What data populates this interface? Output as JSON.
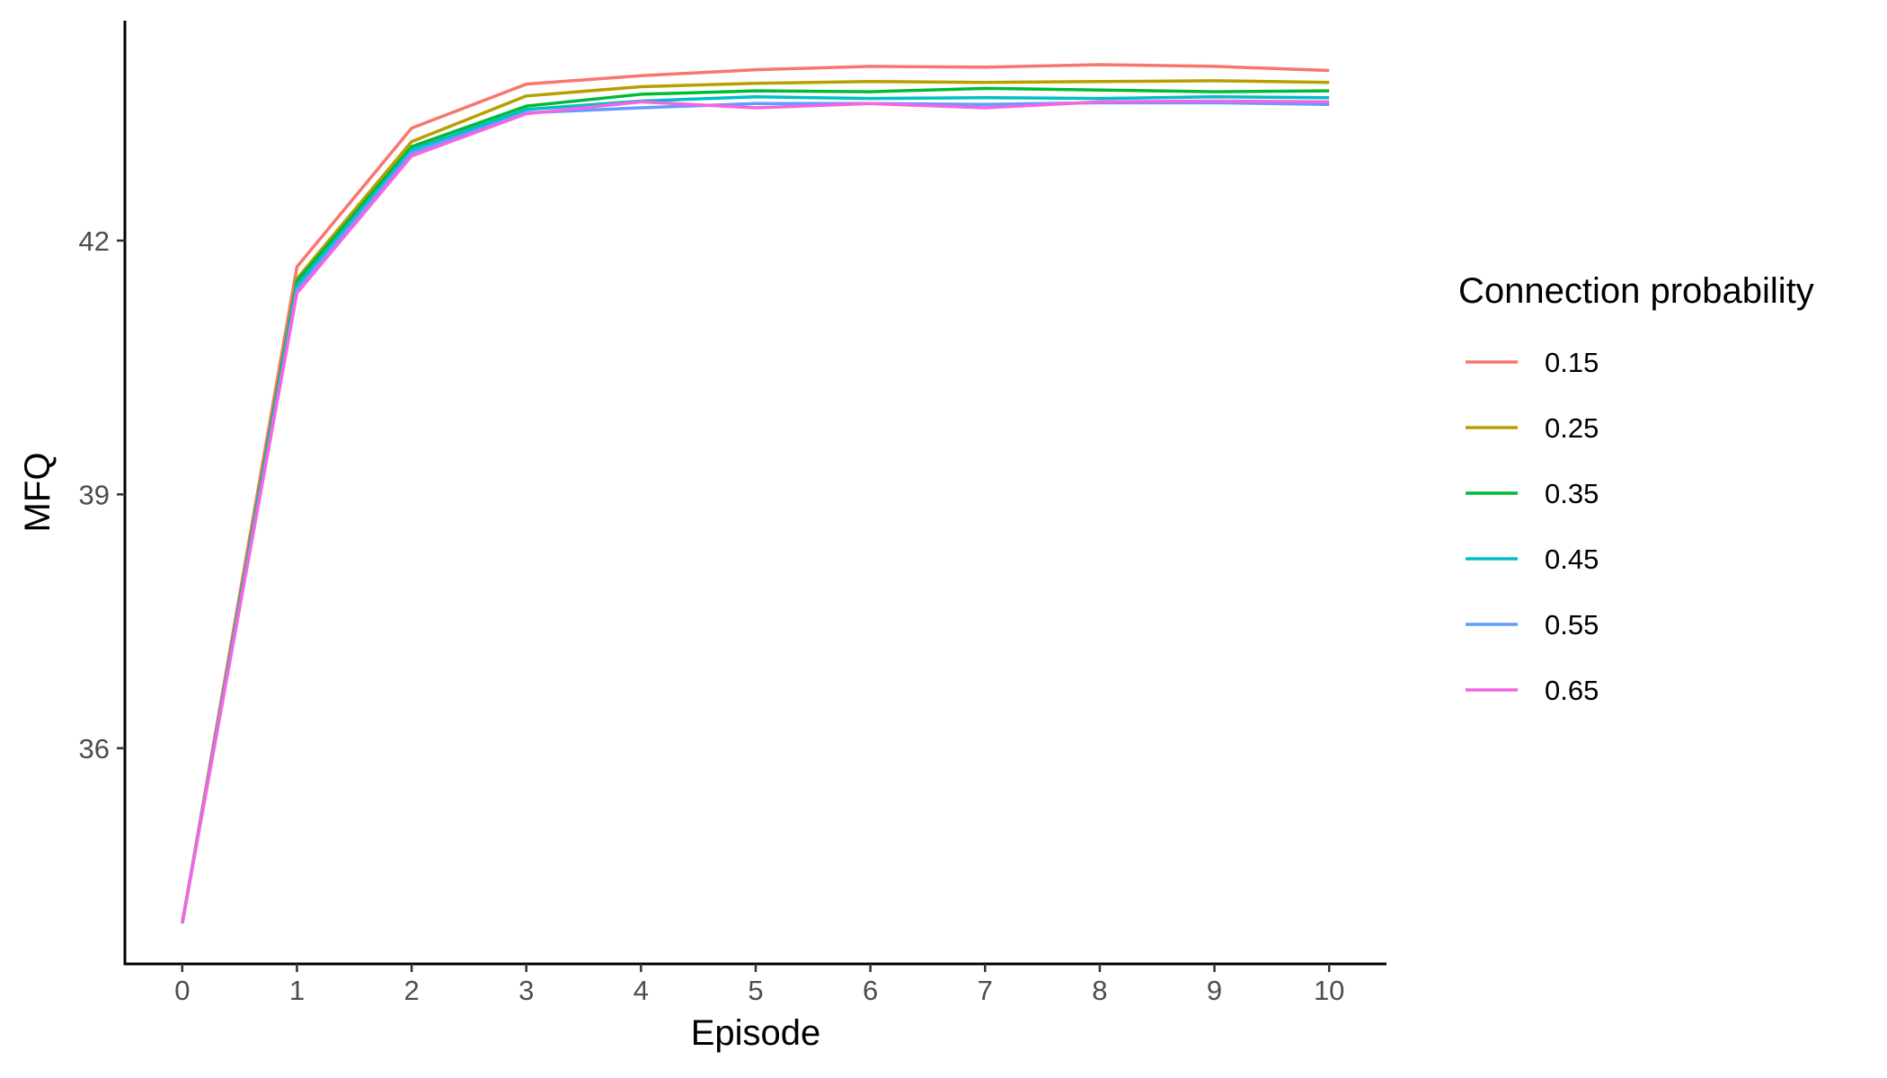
{
  "chart_data": {
    "type": "line",
    "title": "",
    "xlabel": "Episode",
    "ylabel": "MFQ",
    "x": [
      0,
      1,
      2,
      3,
      4,
      5,
      6,
      7,
      8,
      9,
      10
    ],
    "x_ticks": [
      0,
      1,
      2,
      3,
      4,
      5,
      6,
      7,
      8,
      9,
      10
    ],
    "y_ticks": [
      36,
      39,
      42
    ],
    "xlim": [
      -0.5,
      10.5
    ],
    "ylim": [
      33.45,
      44.6
    ],
    "grid": false,
    "legend": {
      "title": "Connection probability",
      "position": "right"
    },
    "series": [
      {
        "name": "0.15",
        "color": "#F8766D",
        "values": [
          33.93,
          41.69,
          43.33,
          43.85,
          43.95,
          44.02,
          44.06,
          44.05,
          44.08,
          44.06,
          44.01
        ]
      },
      {
        "name": "0.25",
        "color": "#B79F00",
        "values": [
          33.93,
          41.55,
          43.17,
          43.71,
          43.82,
          43.86,
          43.88,
          43.87,
          43.88,
          43.89,
          43.87
        ]
      },
      {
        "name": "0.35",
        "color": "#00BA38",
        "values": [
          33.93,
          41.52,
          43.11,
          43.59,
          43.73,
          43.77,
          43.76,
          43.8,
          43.78,
          43.76,
          43.77
        ]
      },
      {
        "name": "0.45",
        "color": "#00BFC4",
        "values": [
          33.93,
          41.47,
          43.07,
          43.55,
          43.65,
          43.7,
          43.68,
          43.69,
          43.68,
          43.7,
          43.69
        ]
      },
      {
        "name": "0.55",
        "color": "#619CFF",
        "values": [
          33.93,
          41.42,
          43.04,
          43.51,
          43.57,
          43.62,
          43.62,
          43.61,
          43.63,
          43.63,
          43.61
        ]
      },
      {
        "name": "0.65",
        "color": "#F564E3",
        "values": [
          33.93,
          41.38,
          43.0,
          43.5,
          43.64,
          43.57,
          43.62,
          43.57,
          43.64,
          43.65,
          43.64
        ]
      }
    ]
  }
}
